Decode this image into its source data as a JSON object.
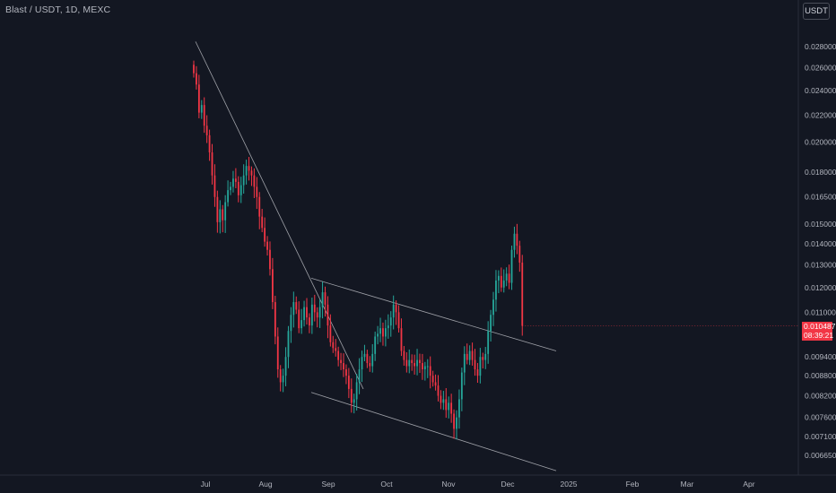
{
  "header": {
    "title": "Blast / USDT, 1D, MEXC",
    "currency_button": "USDT"
  },
  "colors": {
    "background": "#131722",
    "up": "#26a69a",
    "down": "#f23645",
    "trendline": "#b8bac0",
    "axis_text": "#b2b5be"
  },
  "current_price": {
    "value": "0.010487",
    "countdown": "08:39:21"
  },
  "chart_data": {
    "type": "candlestick",
    "y_scale": "log",
    "ylim": [
      0.0062,
      0.031
    ],
    "y_ticks": [
      "0.028000",
      "0.026000",
      "0.024000",
      "0.022000",
      "0.020000",
      "0.018000",
      "0.016500",
      "0.015000",
      "0.014000",
      "0.013000",
      "0.012000",
      "0.011000",
      "0.010487",
      "0.009400",
      "0.008800",
      "0.008200",
      "0.007600",
      "0.007100",
      "0.006650"
    ],
    "x_ticks": [
      "Jul",
      "Aug",
      "Sep",
      "Oct",
      "Nov",
      "Dec",
      "2025",
      "Feb",
      "Mar",
      "Apr"
    ],
    "grid": false,
    "closes": [
      0.0255,
      0.0245,
      0.0222,
      0.0228,
      0.0212,
      0.0205,
      0.0193,
      0.0178,
      0.0165,
      0.0151,
      0.0158,
      0.0152,
      0.0162,
      0.0169,
      0.0171,
      0.0176,
      0.0174,
      0.0166,
      0.0172,
      0.0178,
      0.0184,
      0.0181,
      0.0178,
      0.0171,
      0.0165,
      0.0154,
      0.0148,
      0.0141,
      0.0137,
      0.0128,
      0.0114,
      0.0101,
      0.009,
      0.0086,
      0.0088,
      0.0094,
      0.0103,
      0.0109,
      0.0114,
      0.0111,
      0.0104,
      0.0107,
      0.0112,
      0.0108,
      0.0105,
      0.0113,
      0.011,
      0.0108,
      0.0112,
      0.0118,
      0.0113,
      0.0105,
      0.0099,
      0.0097,
      0.0096,
      0.0093,
      0.0092,
      0.009,
      0.0088,
      0.0084,
      0.008,
      0.0081,
      0.0086,
      0.009,
      0.0094,
      0.0095,
      0.0092,
      0.0091,
      0.0095,
      0.0101,
      0.0102,
      0.0104,
      0.0101,
      0.0104,
      0.0105,
      0.0108,
      0.0113,
      0.011,
      0.0104,
      0.0096,
      0.0093,
      0.0091,
      0.0093,
      0.0092,
      0.0091,
      0.0093,
      0.0092,
      0.009,
      0.0091,
      0.0091,
      0.0088,
      0.0086,
      0.0085,
      0.0082,
      0.008,
      0.0081,
      0.0078,
      0.008,
      0.0077,
      0.0073,
      0.0076,
      0.0081,
      0.0089,
      0.0095,
      0.0093,
      0.0096,
      0.0093,
      0.009,
      0.0088,
      0.0094,
      0.0093,
      0.0095,
      0.0103,
      0.0109,
      0.0115,
      0.0123,
      0.0125,
      0.012,
      0.0123,
      0.0126,
      0.0122,
      0.0137,
      0.0145,
      0.0139,
      0.0131,
      0.010487
    ],
    "annotations": [
      {
        "type": "trendline",
        "from": [
          "Jun 27",
          0.0285
        ],
        "to": [
          "Oct 7",
          0.0084
        ]
      },
      {
        "type": "channel_upper",
        "from": [
          "Aug 26",
          0.0124
        ],
        "to": [
          "Jan 4",
          0.0096
        ]
      },
      {
        "type": "channel_lower",
        "from": [
          "Aug 26",
          0.0083
        ],
        "to": [
          "Jan 4",
          0.0063
        ]
      }
    ]
  }
}
